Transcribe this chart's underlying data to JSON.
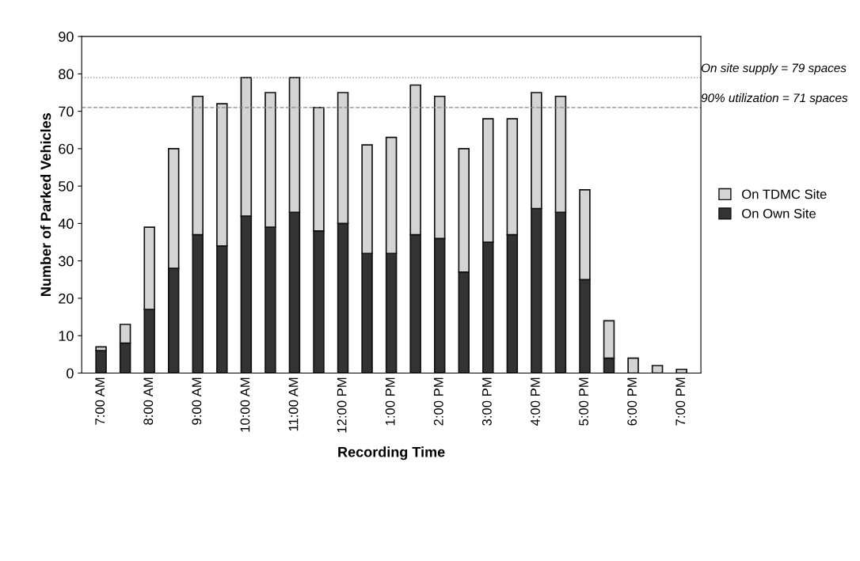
{
  "chart_data": {
    "type": "bar",
    "stacked": true,
    "xlabel": "Recording Time",
    "ylabel": "Number of Parked Vehicles",
    "categories": [
      "7:00 AM",
      null,
      "8:00 AM",
      null,
      "9:00 AM",
      null,
      "10:00 AM",
      null,
      "11:00 AM",
      null,
      "12:00 PM",
      null,
      "1:00 PM",
      null,
      "2:00 PM",
      null,
      "3:00 PM",
      null,
      "4:00 PM",
      null,
      "5:00 PM",
      null,
      "6:00 PM",
      null,
      "7:00 PM"
    ],
    "series": [
      {
        "name": "On Own Site",
        "color": "#333333",
        "values": [
          6,
          8,
          17,
          28,
          37,
          34,
          42,
          39,
          43,
          38,
          40,
          32,
          32,
          37,
          36,
          27,
          35,
          37,
          44,
          43,
          25,
          4,
          0,
          0,
          0
        ]
      },
      {
        "name": "On TDMC Site",
        "color": "#d4d4d4",
        "values": [
          1,
          5,
          22,
          32,
          37,
          38,
          37,
          36,
          36,
          33,
          35,
          29,
          31,
          40,
          38,
          33,
          33,
          31,
          31,
          31,
          24,
          10,
          4,
          2,
          1
        ]
      }
    ],
    "ylim": [
      0,
      90
    ],
    "yticks": [
      0,
      10,
      20,
      30,
      40,
      50,
      60,
      70,
      80,
      90
    ],
    "ref_lines": [
      {
        "axis": "y",
        "value": 79,
        "label": "On site supply = 79 spaces",
        "color": "#888888",
        "line_style": "dotted"
      },
      {
        "axis": "y",
        "value": 71,
        "label": "90% utilization = 71 spaces",
        "color": "#888888",
        "line_style": "dashed"
      }
    ],
    "grid": false,
    "legend": "right"
  }
}
